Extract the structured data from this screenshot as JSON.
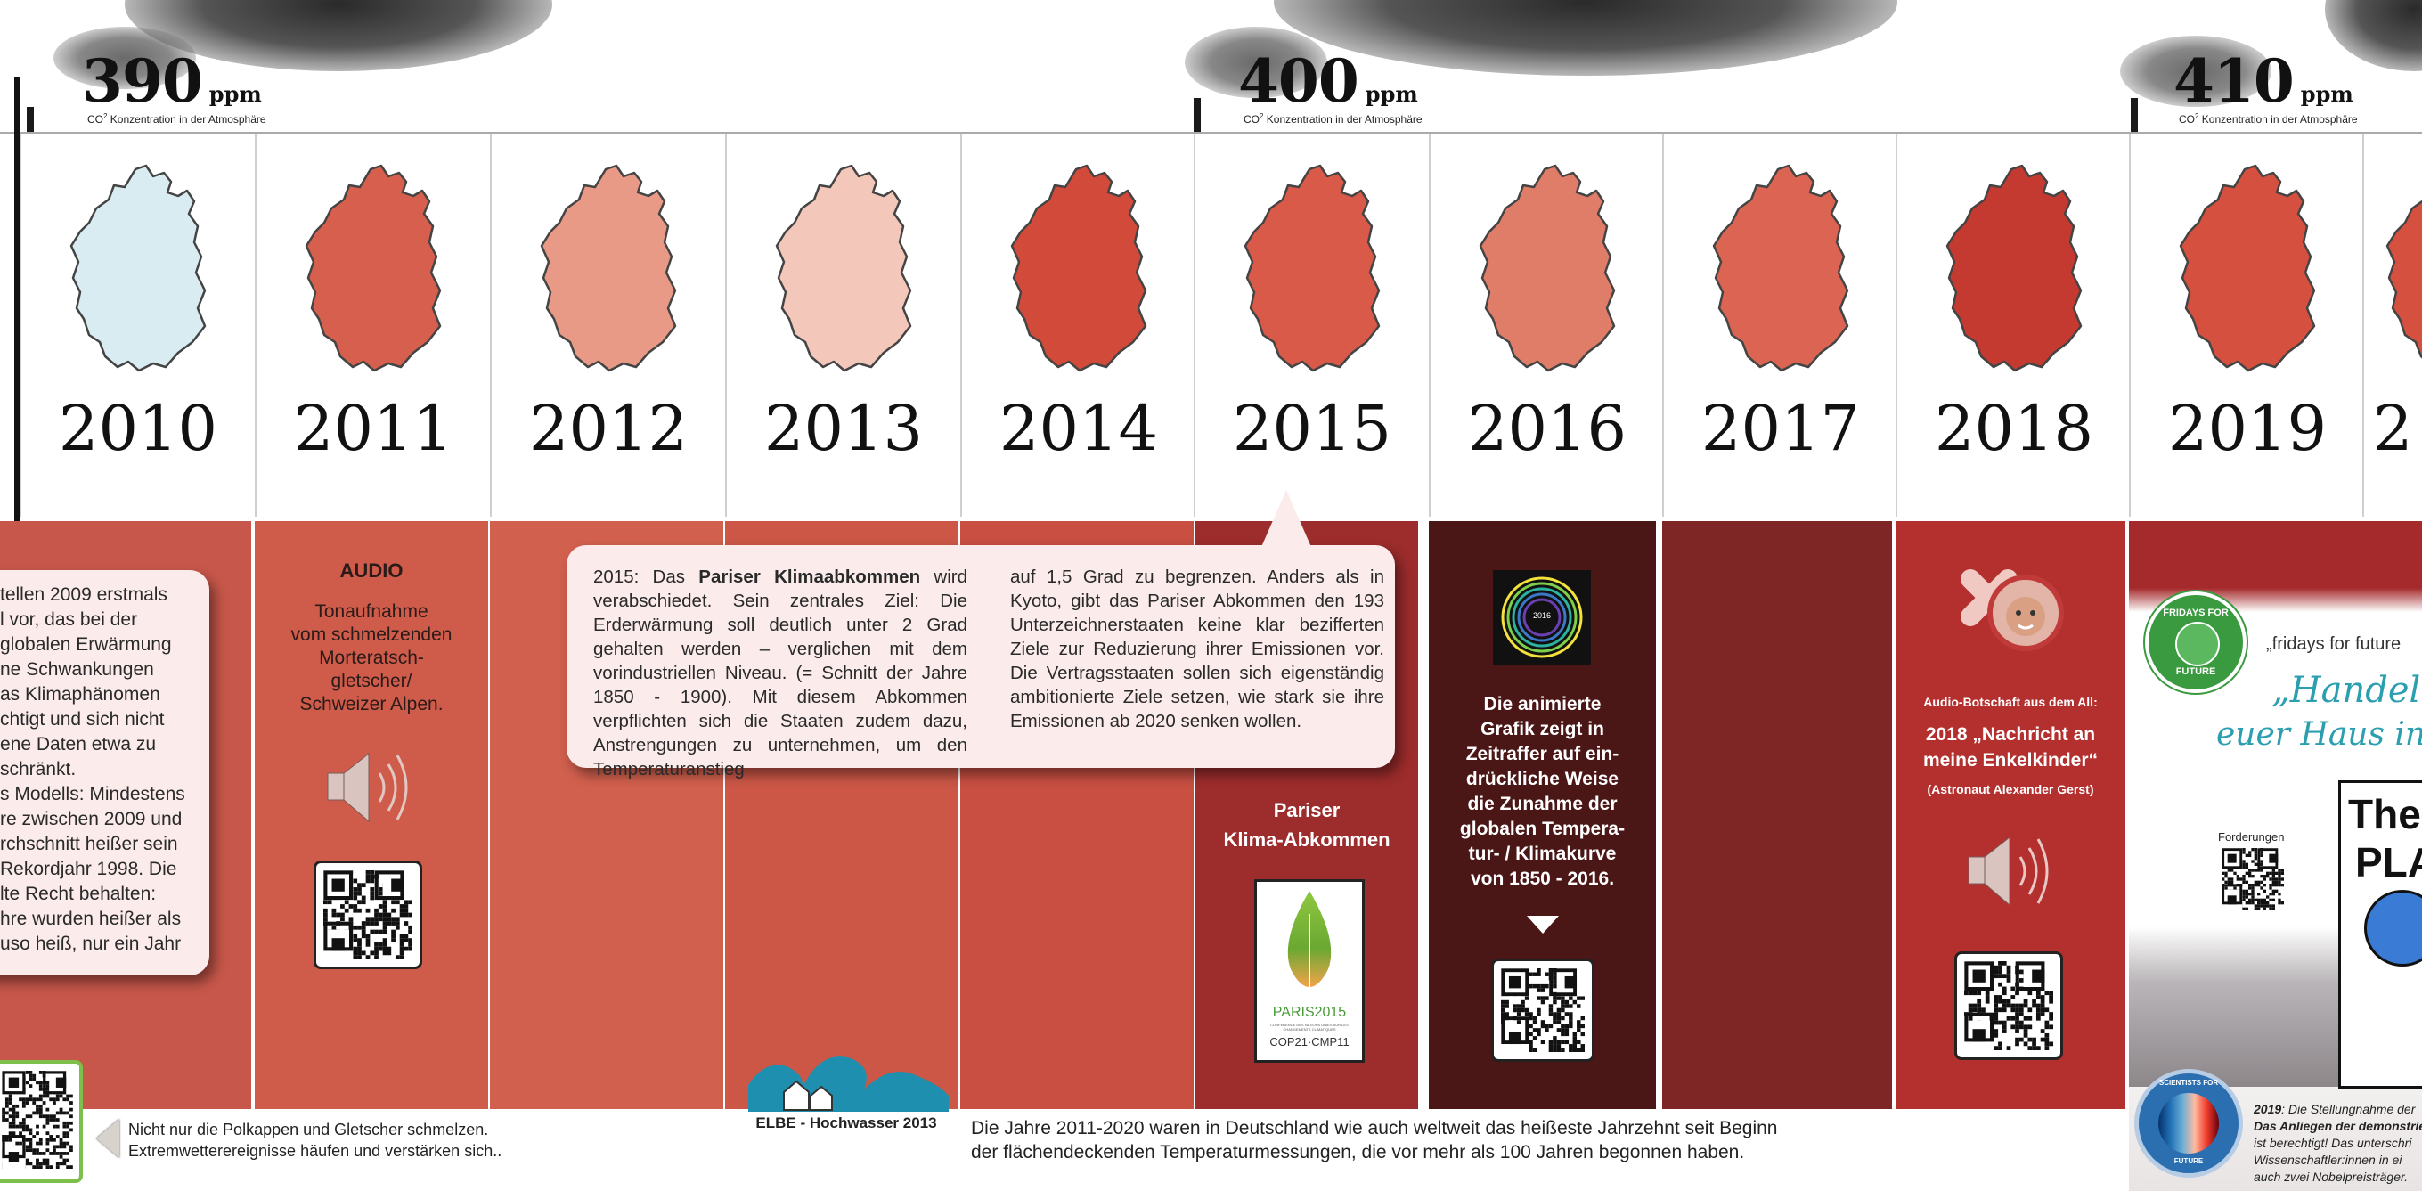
{
  "ppm_markers": [
    {
      "value": "390",
      "unit": "ppm",
      "caption_pre": "CO",
      "caption_sup": "2",
      "caption_post": " Konzentration in der Atmosphäre"
    },
    {
      "value": "400",
      "unit": "ppm",
      "caption_pre": "CO",
      "caption_sup": "2",
      "caption_post": " Konzentration in der Atmosphäre"
    },
    {
      "value": "410",
      "unit": "ppm",
      "caption_pre": "CO",
      "caption_sup": "2",
      "caption_post": " Konzentration in der Atmosphäre"
    }
  ],
  "years": [
    {
      "year": "2010",
      "map_color": "#d9ecf2"
    },
    {
      "year": "2011",
      "map_color": "#d6604d"
    },
    {
      "year": "2012",
      "map_color": "#e99a86"
    },
    {
      "year": "2013",
      "map_color": "#f4c7bb"
    },
    {
      "year": "2014",
      "map_color": "#d24a3a"
    },
    {
      "year": "2015",
      "map_color": "#d95a48"
    },
    {
      "year": "2016",
      "map_color": "#e07d68"
    },
    {
      "year": "2017",
      "map_color": "#db6552"
    },
    {
      "year": "2018",
      "map_color": "#c43a30"
    },
    {
      "year": "2019",
      "map_color": "#d6503f"
    },
    {
      "year": "2",
      "map_color": "#d6503f"
    }
  ],
  "left_card": {
    "lines": [
      "tellen 2009 erstmals",
      "l vor, das bei der",
      "globalen Erwärmung",
      "ne Schwankungen",
      "as Klimaphänomen",
      "chtigt und sich nicht",
      "ene Daten etwa zu",
      "schränkt.",
      "s Modells: Mindestens",
      "re zwischen 2009 und",
      "rchschnitt heißer sein",
      "Rekordjahr 1998. Die",
      "lte Recht behalten:",
      "hre wurden heißer als",
      "uso heiß, nur ein Jahr"
    ]
  },
  "audio_2011": {
    "heading": "AUDIO",
    "line1": "Tonaufnahme",
    "line2": "vom schmelzenden",
    "line3": "Morteratsch-",
    "line4": "gletscher/",
    "line5": "Schweizer Alpen."
  },
  "callout": {
    "left_lead": "2015: Das ",
    "left_bold": "Pariser Klimaabkommen",
    "left_rest": " wird verabschiedet. Sein zentrales Ziel: Die Erderwärmung soll deutlich unter 2 Grad gehalten werden – verglichen mit dem vorindustriellen Niveau. (= Schnitt der Jahre 1850 - 1900). Mit diesem Abkommen verpflichten sich die Staaten zudem dazu, Anstrengungen zu unternehmen, um den Temperaturanstieg",
    "right": "auf 1,5 Grad zu begrenzen. Anders als in Kyoto, gibt das Pariser Abkommen den 193 Unterzeichnerstaaten keine klar bezifferten Ziele zur Reduzierung ihrer Emissionen vor. Die Vertragsstaaten sollen sich eigenständig ambitionierte Ziele setzen, wie stark sie ihre Emissionen ab 2020 senken wollen."
  },
  "paris": {
    "title1": "Pariser",
    "title2": "Klima-Abkommen",
    "logo_line1": "PARIS2015",
    "logo_line2": "CONFERENCE DES NATIONS UNIES SUR LES CHANGEMENTS CLIMATIQUES",
    "logo_line3": "COP21·CMP11"
  },
  "animation_2016": {
    "badge": "2016",
    "lines": [
      "Die animierte",
      "Grafik zeigt in",
      "Zeitraffer auf ein-",
      "drückliche Weise",
      "die Zunahme der",
      "globalen Tempera-",
      "tur- / Klimakurve",
      "von 1850 - 2016."
    ]
  },
  "audio_2018": {
    "small": "Audio-Botschaft aus dem All:",
    "title1": "2018 „Nachricht an",
    "title2": "meine Enkelkinder“",
    "sub": "(Astronaut Alexander Gerst)"
  },
  "fridays": {
    "badge_top": "FRIDAYS FOR",
    "badge_bottom": "FUTURE",
    "quote_small": "„fridays for future",
    "quote_big1": "„Handelt, ",
    "quote_big2": "euer Haus in F",
    "forderungen": "Forderungen",
    "sign1": "Ther",
    "sign2": "PLA"
  },
  "scientists": {
    "badge_top": "SCIENTISTS FOR",
    "badge_bottom": "FUTURE",
    "text1_year": "2019",
    "text1": ": Die Stellungnahme der",
    "text2": "Das Anliegen der demonstrie",
    "text3": "ist berechtigt! Das unterschri",
    "text4": "Wissenschaftler:innen in ei",
    "text5": "auch zwei Nobelpreisträger."
  },
  "elbe": {
    "label": "ELBE - Hochwasser 2013"
  },
  "footer_left": {
    "line1": "Nicht nur die Polkappen und Gletscher schmelzen.",
    "line2": "Extremwetterereignisse häufen und verstärken sich.."
  },
  "footer_main": {
    "line1": "Die Jahre 2011-2020 waren in Deutschland wie auch weltweit das heißeste Jahrzehnt seit Beginn",
    "line2": "der flächendeckenden Temperaturmessungen, die vor mehr als 100 Jahren begonnen haben."
  },
  "colors": {
    "band_2010": "#c7574a",
    "band_2011": "#cf5c4b",
    "band_2012": "#d2604e",
    "band_2013": "#cc5747",
    "band_2014": "#c84f42",
    "band_2015": "#9d2c2c",
    "band_2016": "#4a1616",
    "band_2017": "#7e2626",
    "band_2018": "#b3302f",
    "band_2019": "#a52a2c",
    "footer_text": "#222222",
    "teal_quote": "#2b9fb0",
    "fff_green": "#3a9a3f"
  }
}
